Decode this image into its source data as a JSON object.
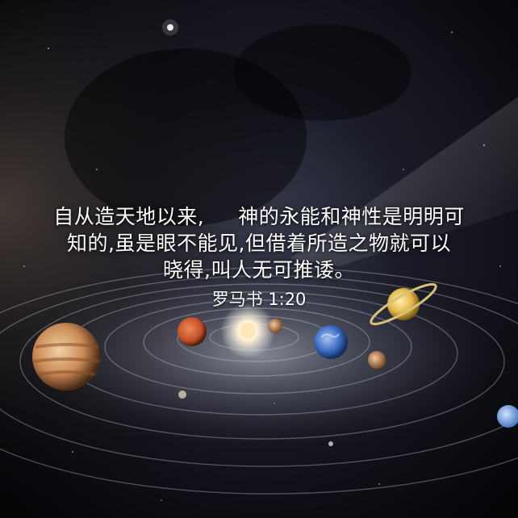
{
  "verse": {
    "line1_a": "自从造天地以来,",
    "line1_b": "神的永能和神性是明明可",
    "line2": "知的,虽是眼不能见,但借着所造之物就可以",
    "line3": "晓得,叫人无可推诿。"
  },
  "reference": "罗马书 1:20",
  "colors": {
    "text": "#ffffff",
    "space": "#07070c",
    "jupiter": "#c98a55",
    "mars": "#c0502a",
    "earth": "#3f6fc4",
    "saturn": "#e2b84a",
    "sun": "#fff3d6"
  },
  "planets": [
    "jupiter",
    "mars",
    "sun",
    "venus",
    "earth",
    "mercury",
    "saturn",
    "neptune"
  ]
}
